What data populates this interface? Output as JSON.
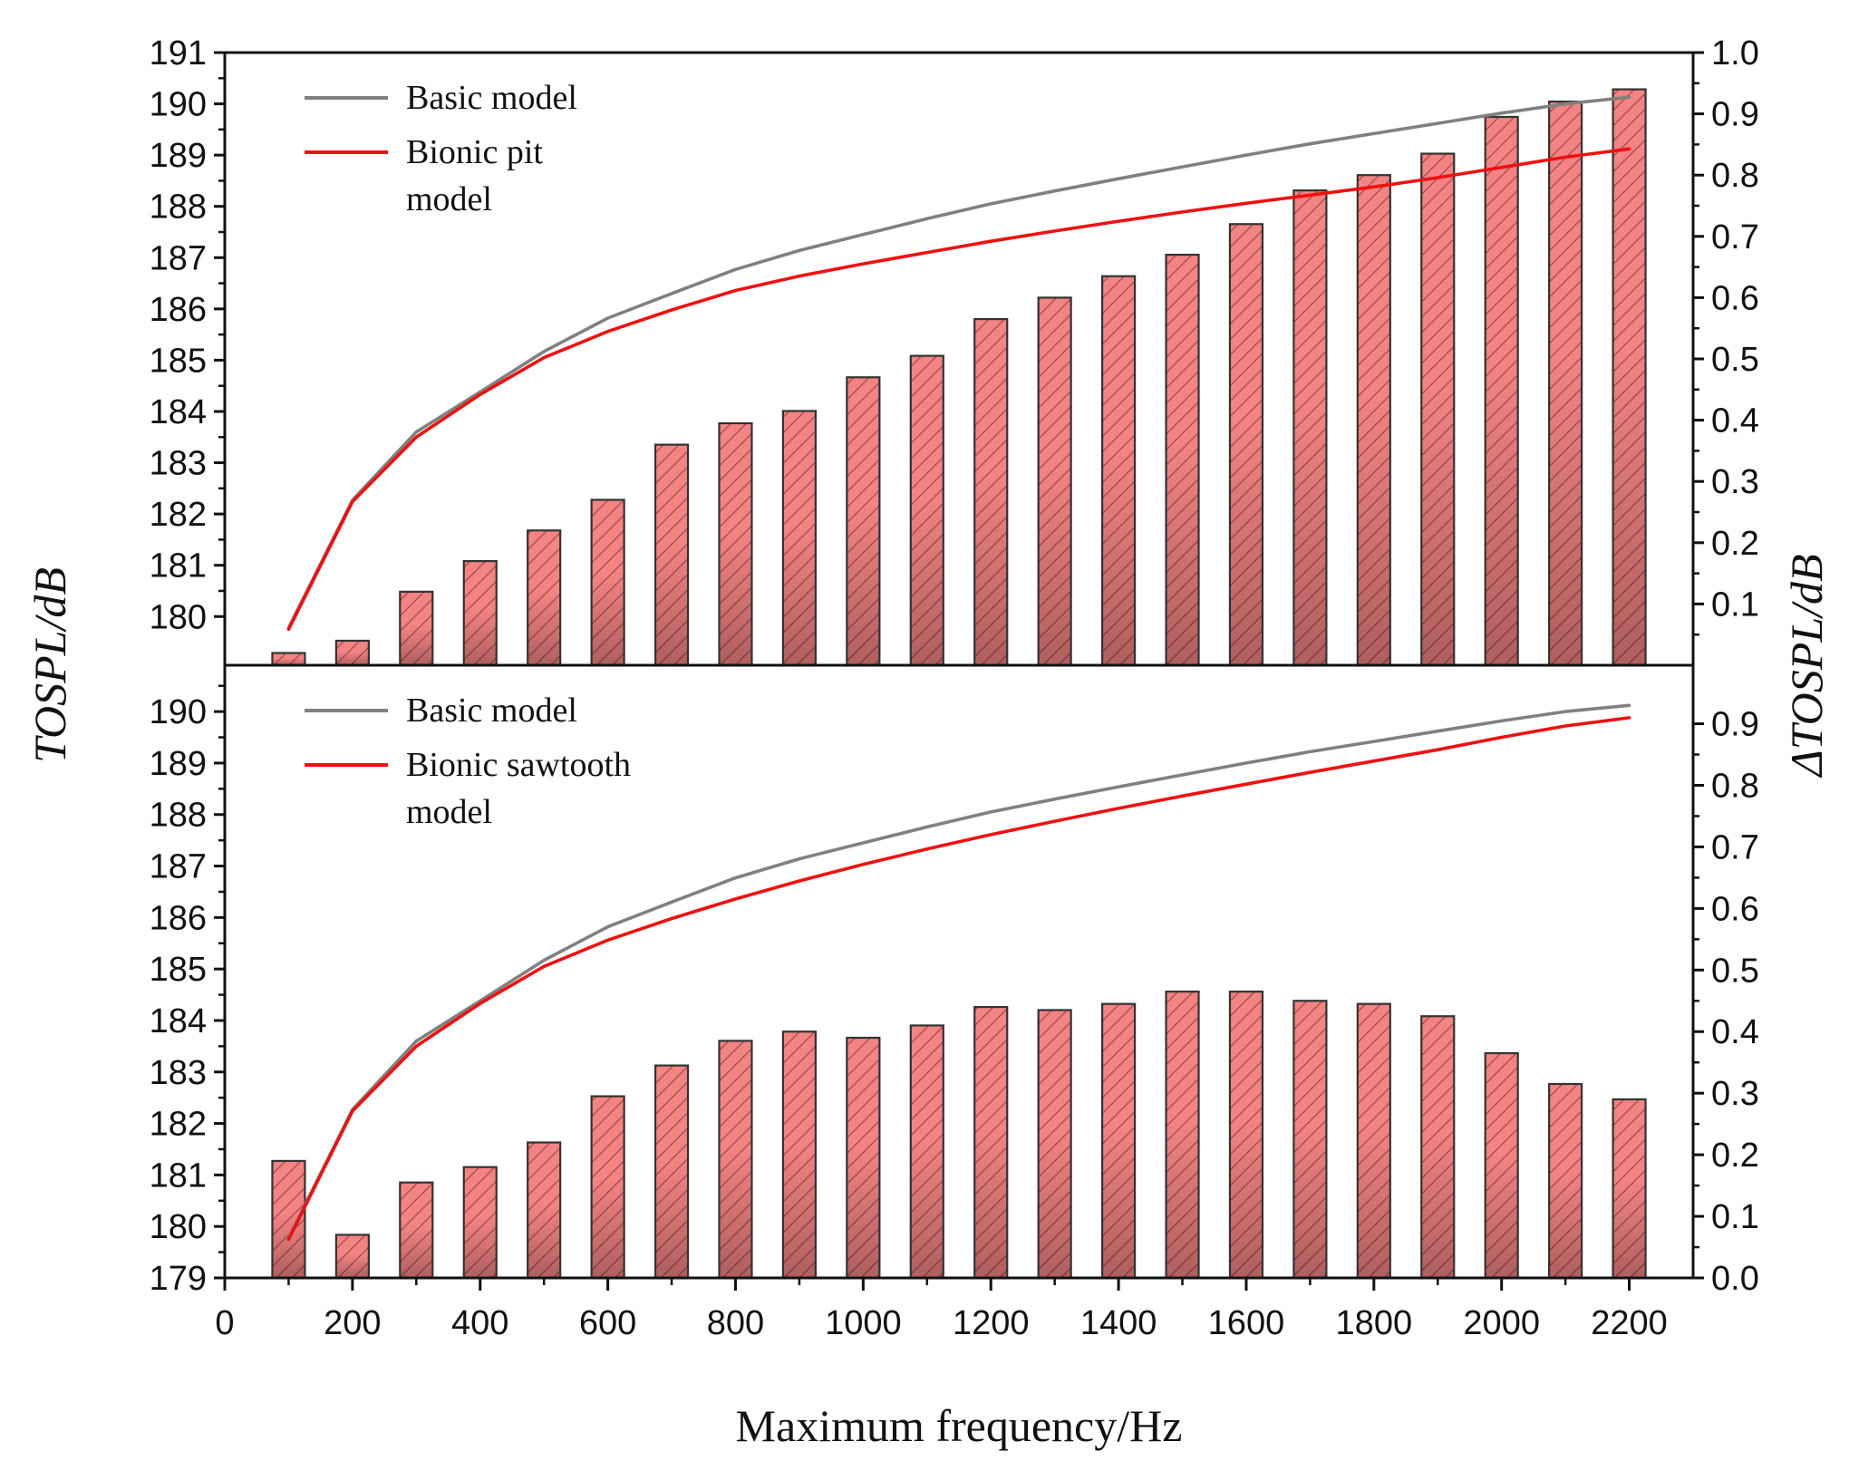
{
  "chart_data": {
    "type": "bar+line",
    "xlabel": "Maximum frequency/Hz",
    "ylabel_left": "TOSPL/dB",
    "ylabel_right": "ΔTOSPL/dB",
    "xlim": [
      0,
      2300
    ],
    "x_ticks": [
      "0",
      "200",
      "400",
      "600",
      "800",
      "1000",
      "1200",
      "1400",
      "1600",
      "1800",
      "2000",
      "2200"
    ],
    "x": [
      100,
      200,
      300,
      400,
      500,
      600,
      700,
      800,
      900,
      1000,
      1100,
      1200,
      1300,
      1400,
      1500,
      1600,
      1700,
      1800,
      1900,
      2000,
      2100,
      2200
    ],
    "colors": {
      "basic_line": "#808080",
      "bionic_line": "#ee1111",
      "bar_fill": "#f48383",
      "bar_edge": "#333333"
    },
    "panels": [
      {
        "name": "top",
        "ylim_left": [
          179.05,
          191
        ],
        "ylim_right": [
          0.0,
          1.0
        ],
        "left_ticks": [
          "180",
          "181",
          "182",
          "183",
          "184",
          "185",
          "186",
          "187",
          "188",
          "189",
          "190",
          "191"
        ],
        "right_ticks": [
          "0.1",
          "0.2",
          "0.3",
          "0.4",
          "0.5",
          "0.6",
          "0.7",
          "0.8",
          "0.9",
          "1.0"
        ],
        "series": [
          {
            "name": "Basic model",
            "axis": "left",
            "values": [
              179.78,
              182.27,
              183.6,
              184.38,
              185.17,
              185.82,
              186.3,
              186.77,
              187.14,
              187.45,
              187.76,
              188.05,
              188.3,
              188.54,
              188.77,
              189.0,
              189.22,
              189.42,
              189.62,
              189.82,
              190.0,
              190.13
            ]
          },
          {
            "name": "Bionic pit model",
            "axis": "left",
            "values": [
              179.75,
              182.24,
              183.5,
              184.33,
              185.05,
              185.56,
              185.98,
              186.36,
              186.64,
              186.88,
              187.1,
              187.32,
              187.52,
              187.71,
              187.89,
              188.06,
              188.22,
              188.38,
              188.56,
              188.76,
              188.96,
              189.12
            ]
          },
          {
            "name": "ΔTOSPL (bars)",
            "axis": "right",
            "values": [
              0.02,
              0.04,
              0.12,
              0.17,
              0.22,
              0.27,
              0.36,
              0.395,
              0.415,
              0.47,
              0.505,
              0.565,
              0.6,
              0.635,
              0.67,
              0.72,
              0.775,
              0.8,
              0.835,
              0.895,
              0.92,
              0.94
            ]
          }
        ],
        "legend": {
          "position": "top-left",
          "entries": [
            {
              "lines": [
                "Basic model"
              ],
              "series": "Basic model"
            },
            {
              "lines": [
                "Bionic pit",
                "model"
              ],
              "series": "Bionic pit model"
            }
          ]
        }
      },
      {
        "name": "bottom",
        "ylim_left": [
          179,
          190.9
        ],
        "ylim_right": [
          0.0,
          0.995
        ],
        "left_ticks": [
          "179",
          "180",
          "181",
          "182",
          "183",
          "184",
          "185",
          "186",
          "187",
          "188",
          "189",
          "190"
        ],
        "right_ticks": [
          "0.0",
          "0.1",
          "0.2",
          "0.3",
          "0.4",
          "0.5",
          "0.6",
          "0.7",
          "0.8",
          "0.9"
        ],
        "series": [
          {
            "name": "Basic model",
            "axis": "left",
            "values": [
              179.78,
              182.27,
              183.6,
              184.38,
              185.17,
              185.82,
              186.3,
              186.77,
              187.14,
              187.45,
              187.76,
              188.05,
              188.3,
              188.54,
              188.77,
              189.0,
              189.22,
              189.42,
              189.62,
              189.82,
              190.0,
              190.12
            ]
          },
          {
            "name": "Bionic sawtooth model",
            "axis": "left",
            "values": [
              179.75,
              182.24,
              183.5,
              184.33,
              185.05,
              185.56,
              185.98,
              186.36,
              186.71,
              187.03,
              187.33,
              187.61,
              187.87,
              188.12,
              188.36,
              188.59,
              188.82,
              189.04,
              189.26,
              189.5,
              189.72,
              189.88
            ]
          },
          {
            "name": "ΔTOSPL (bars)",
            "axis": "right",
            "values": [
              0.19,
              0.07,
              0.155,
              0.18,
              0.22,
              0.295,
              0.345,
              0.385,
              0.4,
              0.39,
              0.41,
              0.44,
              0.435,
              0.445,
              0.465,
              0.465,
              0.45,
              0.445,
              0.425,
              0.365,
              0.315,
              0.29
            ]
          }
        ],
        "legend": {
          "position": "top-left",
          "entries": [
            {
              "lines": [
                "Basic model"
              ],
              "series": "Basic model"
            },
            {
              "lines": [
                "Bionic sawtooth",
                "model"
              ],
              "series": "Bionic sawtooth model"
            }
          ]
        }
      }
    ]
  }
}
